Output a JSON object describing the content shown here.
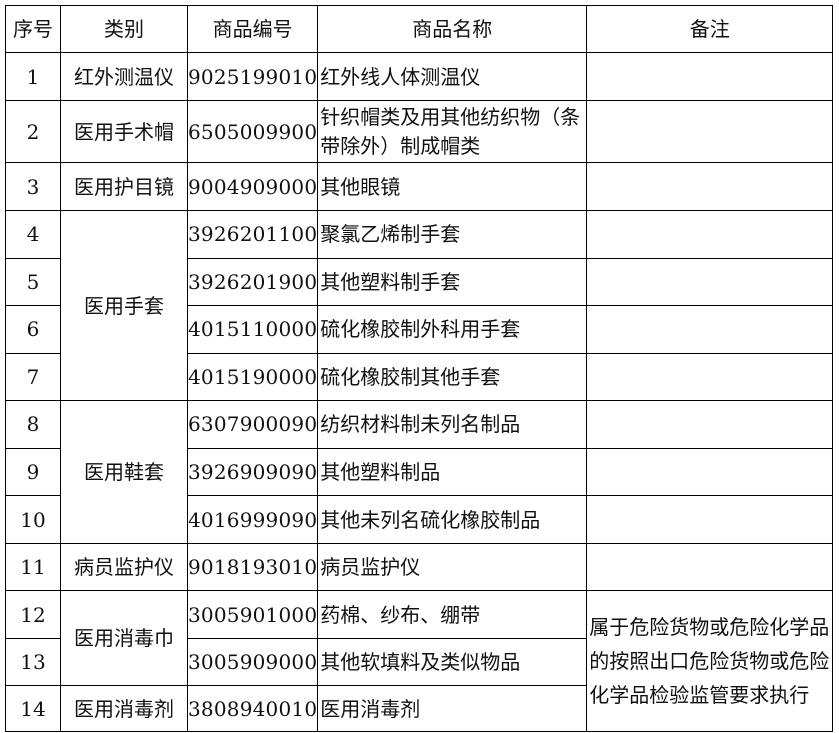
{
  "headers": [
    "序号",
    "类别",
    "商品编号",
    "商品名称",
    "备注"
  ],
  "rows": [
    {
      "no": "1",
      "category": "红外测温仪",
      "code": "9025199010",
      "name": "红外线人体测温仪"
    },
    {
      "no": "2",
      "category": "医用手术帽",
      "code": "6505009900",
      "name": "针织帽类及用其他纺织物（条带除外）制成帽类"
    },
    {
      "no": "3",
      "category": "医用护目镜",
      "code": "9004909000",
      "name": "其他眼镜"
    },
    {
      "no": "4",
      "category": "医用手套",
      "code": "3926201100",
      "name": "聚氯乙烯制手套"
    },
    {
      "no": "5",
      "category": "医用手套",
      "code": "3926201900",
      "name": "其他塑料制手套"
    },
    {
      "no": "6",
      "category": "医用手套",
      "code": "4015110000",
      "name": "硫化橡胶制外科用手套"
    },
    {
      "no": "7",
      "category": "医用手套",
      "code": "4015190000",
      "name": "硫化橡胶制其他手套"
    },
    {
      "no": "8",
      "category": "医用鞋套",
      "code": "6307900090",
      "name": "纺织材料制未列名制品"
    },
    {
      "no": "9",
      "category": "医用鞋套",
      "code": "3926909090",
      "name": "其他塑料制品"
    },
    {
      "no": "10",
      "category": "医用鞋套",
      "code": "4016999090",
      "name": "其他未列名硫化橡胶制品"
    },
    {
      "no": "11",
      "category": "病员监护仪",
      "code": "9018193010",
      "name": "病员监护仪"
    },
    {
      "no": "12",
      "category": "医用消毒巾",
      "code": "3005901000",
      "name": "药棉、纱布、绷带"
    },
    {
      "no": "13",
      "category": "医用消毒巾",
      "code": "3005909000",
      "name": "其他软填料及类似物品"
    },
    {
      "no": "14",
      "category": "医用消毒剂",
      "code": "3808940010",
      "name": "医用消毒剂"
    }
  ],
  "note_rows_12_14": "属于危险货物或危险化学品的按照出口危险货物或危险化学品检验监管要求执行"
}
